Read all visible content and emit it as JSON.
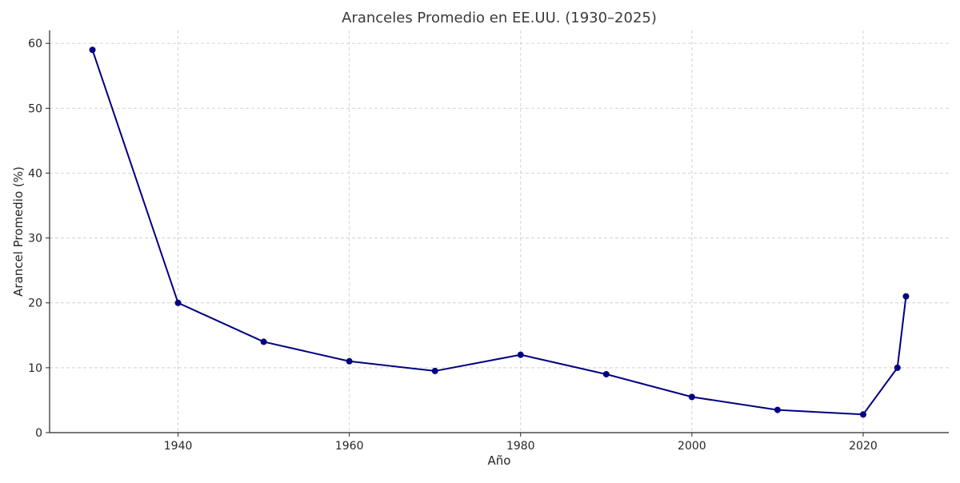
{
  "chart_data": {
    "type": "line",
    "title": "Aranceles Promedio en EE.UU. (1930–2025)",
    "xlabel": "Año",
    "ylabel": "Arancel Promedio (%)",
    "xlim": [
      1925,
      2030
    ],
    "ylim": [
      0,
      62
    ],
    "x_ticks": [
      1940,
      1960,
      1980,
      2000,
      2020
    ],
    "y_ticks": [
      0,
      10,
      20,
      30,
      40,
      50,
      60
    ],
    "grid": true,
    "line_color": "#000080",
    "series": [
      {
        "x": [
          1930,
          1940,
          1950,
          1960,
          1970,
          1980,
          1990,
          2000,
          2010,
          2020,
          2024,
          2025
        ],
        "values": [
          59,
          20,
          14,
          11,
          9.5,
          12,
          9,
          5.5,
          3.5,
          2.8,
          10,
          21
        ]
      }
    ]
  }
}
